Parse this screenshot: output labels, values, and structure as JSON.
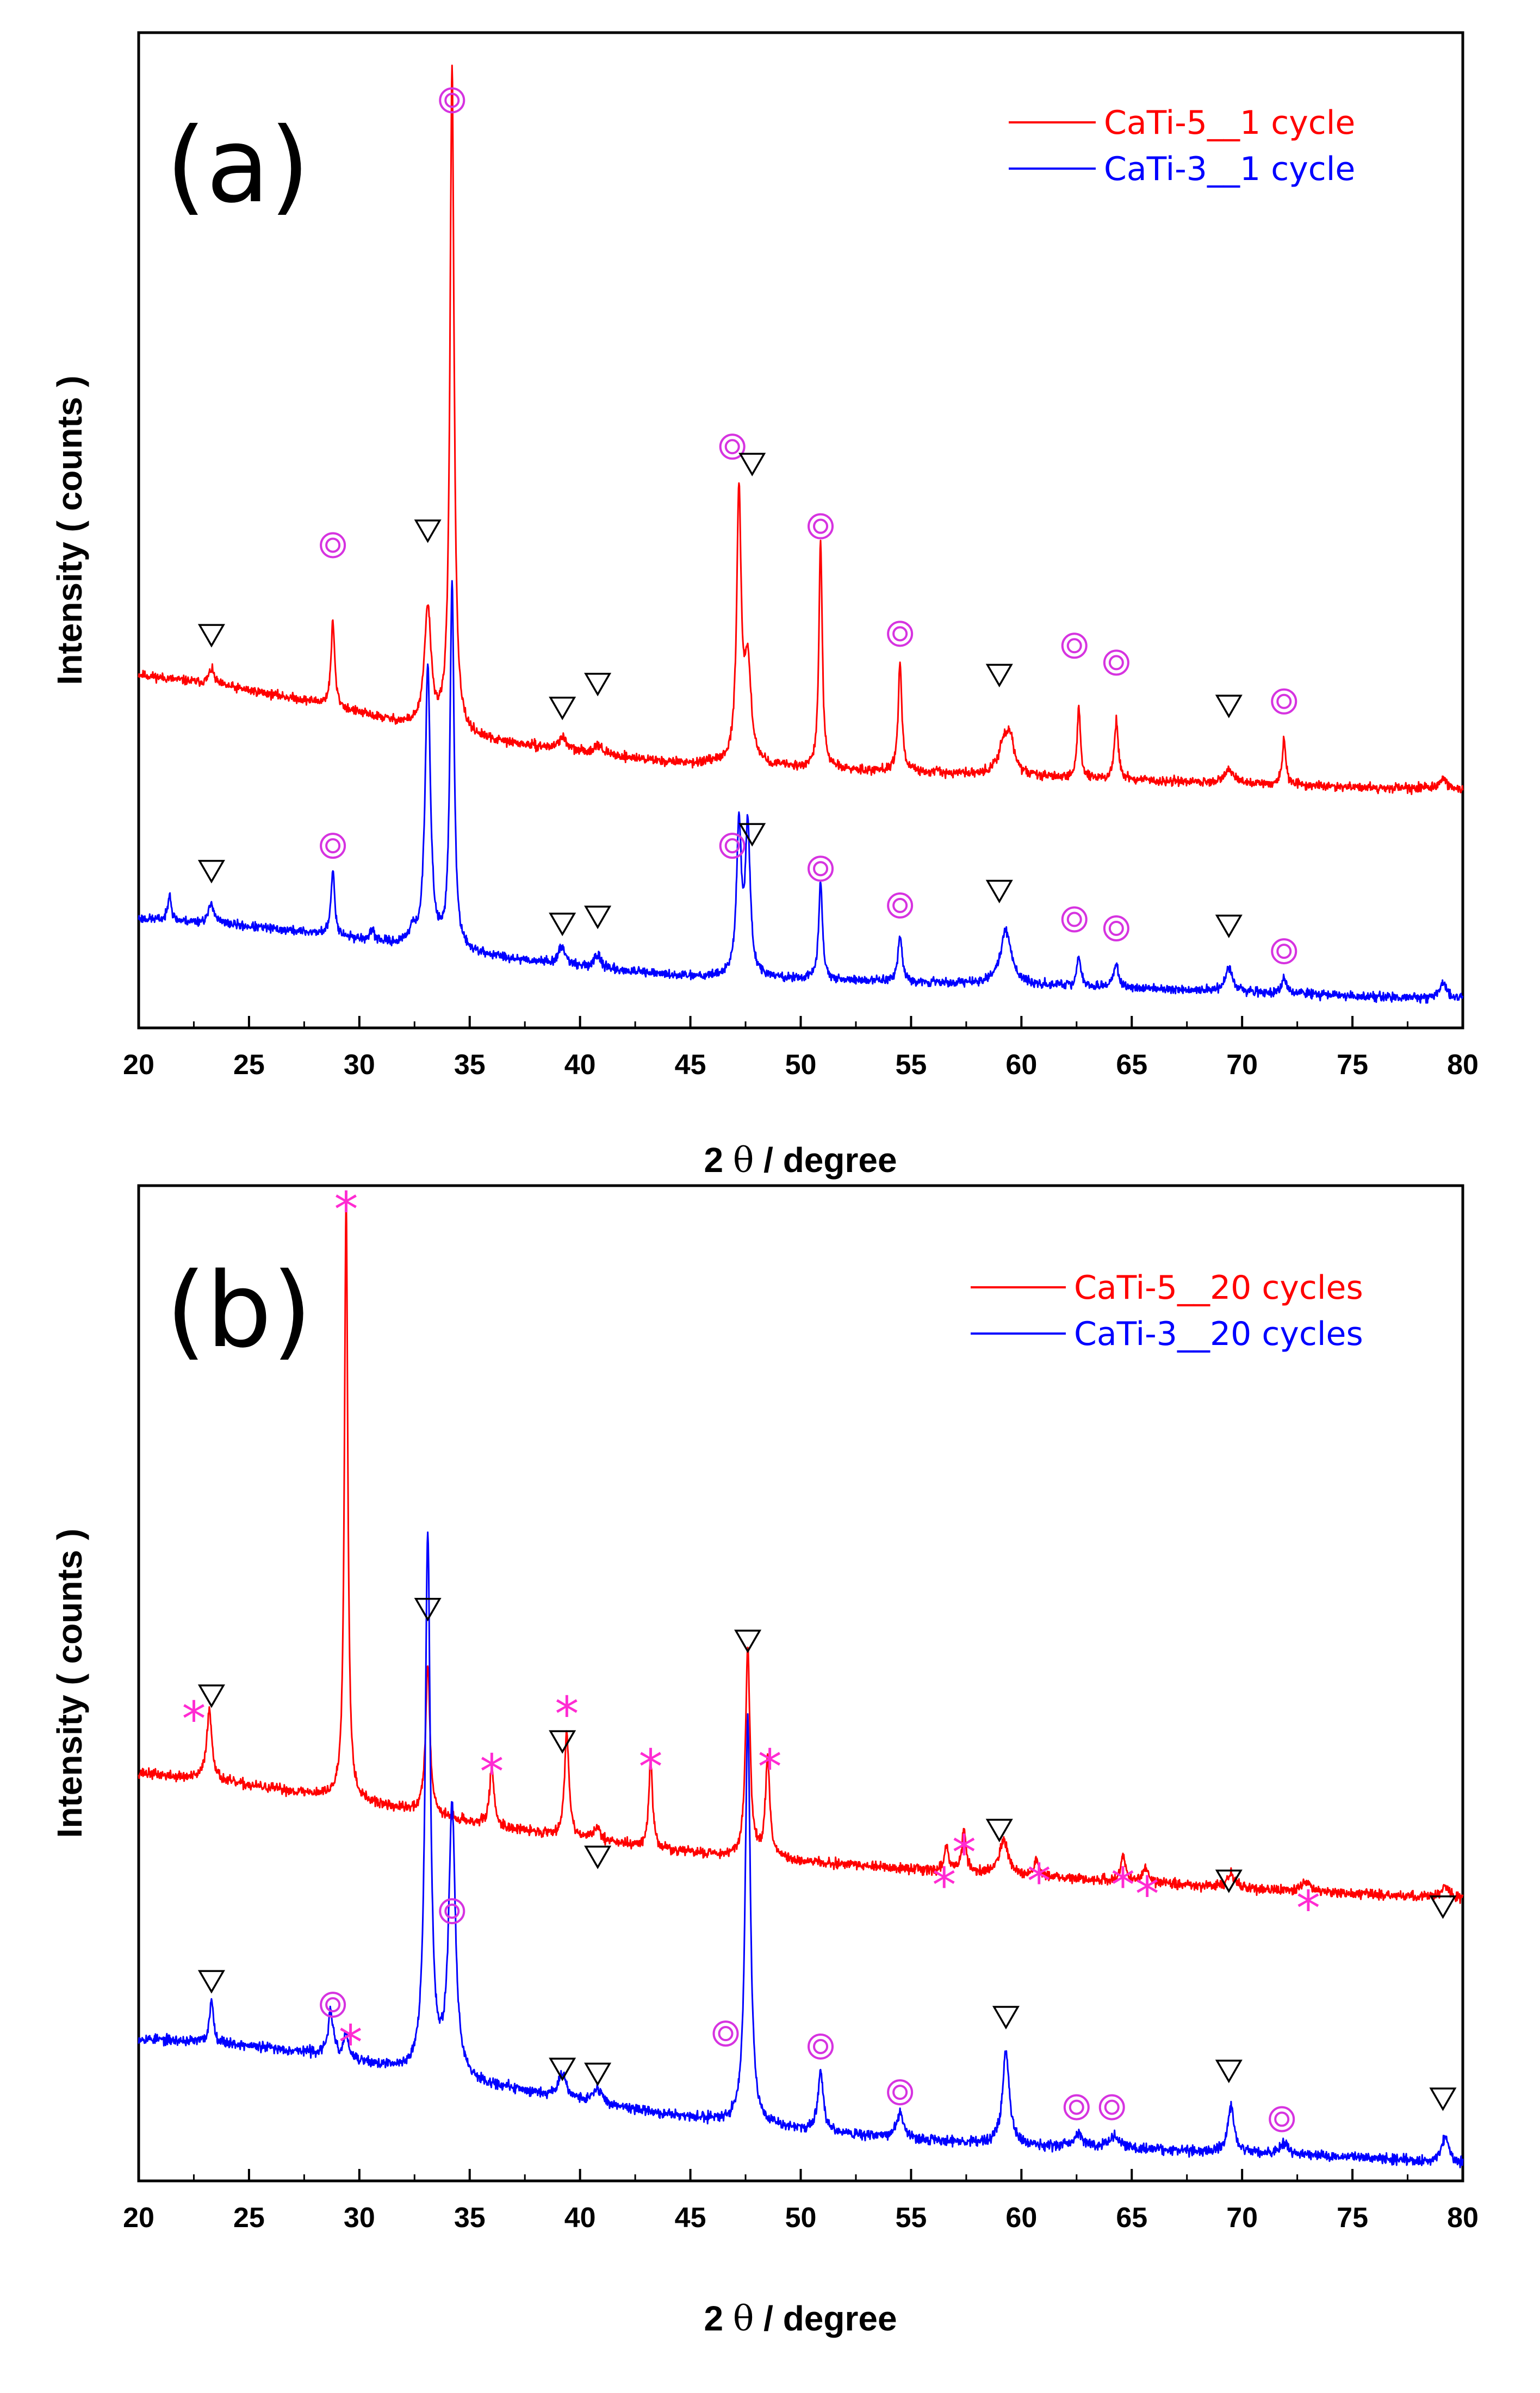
{
  "colors": {
    "red": "#ff0000",
    "blue": "#0000ff",
    "magenta": "#d633e0",
    "star": "#ff2bd2",
    "black": "#000000"
  },
  "icons": {
    "ring": "double-circle-icon",
    "triangle": "down-triangle-icon",
    "star": "asterisk-icon"
  },
  "chart_data": [
    {
      "type": "line",
      "panel_label": "(a)",
      "xlabel_parts": [
        "2",
        "θ",
        "/ degree"
      ],
      "ylabel": "Intensity ( counts )",
      "xlim": [
        20,
        80
      ],
      "ylim": [
        0,
        100
      ],
      "xticks": [
        20,
        25,
        30,
        35,
        40,
        45,
        50,
        55,
        60,
        65,
        70,
        75,
        80
      ],
      "xtick_labels": [
        "20",
        "25",
        "30",
        "35",
        "40",
        "45",
        "50",
        "55",
        "60",
        "65",
        "70",
        "75",
        "80"
      ],
      "legend": [
        "CaTi-5__1 cycle",
        "CaTi-3__1 cycle"
      ],
      "series": [
        {
          "name": "CaTi-5__1 cycle",
          "color": "#ff0000",
          "seed": 11,
          "noise": 0.45,
          "baseline": [
            [
              20,
              35.5
            ],
            [
              24,
              34.3
            ],
            [
              28,
              32.7
            ],
            [
              32,
              30.5
            ],
            [
              36,
              28.8
            ],
            [
              40,
              27.7
            ],
            [
              44,
              26.7
            ],
            [
              48,
              26.3
            ],
            [
              55,
              25.7
            ],
            [
              60,
              25.3
            ],
            [
              65,
              24.9
            ],
            [
              70,
              24.5
            ],
            [
              75,
              24.2
            ],
            [
              80,
              24.0
            ]
          ],
          "peaks": [
            [
              23.3,
              1.5,
              0.15
            ],
            [
              28.8,
              8.5,
              0.1
            ],
            [
              33.1,
              12.0,
              0.18
            ],
            [
              34.2,
              67.0,
              0.11
            ],
            [
              39.2,
              1.3,
              0.2
            ],
            [
              40.8,
              1.0,
              0.2
            ],
            [
              47.2,
              27.0,
              0.12
            ],
            [
              47.6,
              10.0,
              0.18
            ],
            [
              50.9,
              23.0,
              0.09
            ],
            [
              54.5,
              11.0,
              0.1
            ],
            [
              59.2,
              3.0,
              0.3
            ],
            [
              59.5,
              3.0,
              0.2
            ],
            [
              62.6,
              7.0,
              0.09
            ],
            [
              64.3,
              6.0,
              0.1
            ],
            [
              69.4,
              1.5,
              0.25
            ],
            [
              71.9,
              4.5,
              0.1
            ],
            [
              79.1,
              1.0,
              0.2
            ]
          ]
        },
        {
          "name": "CaTi-3__1 cycle",
          "color": "#0000ff",
          "seed": 23,
          "noise": 0.45,
          "baseline": [
            [
              20,
              11.0
            ],
            [
              24,
              10.4
            ],
            [
              28,
              9.5
            ],
            [
              32,
              8.3
            ],
            [
              36,
              7.2
            ],
            [
              40,
              6.1
            ],
            [
              44,
              5.3
            ],
            [
              48,
              5.0
            ],
            [
              55,
              4.6
            ],
            [
              60,
              4.3
            ],
            [
              65,
              4.0
            ],
            [
              70,
              3.6
            ],
            [
              75,
              3.2
            ],
            [
              80,
              2.9
            ]
          ],
          "peaks": [
            [
              21.4,
              3.0,
              0.08
            ],
            [
              23.3,
              2.0,
              0.15
            ],
            [
              28.8,
              6.5,
              0.1
            ],
            [
              30.6,
              1.0,
              0.1
            ],
            [
              32.4,
              1.5,
              0.15
            ],
            [
              33.1,
              28.0,
              0.14
            ],
            [
              34.2,
              37.0,
              0.11
            ],
            [
              39.2,
              1.8,
              0.2
            ],
            [
              40.8,
              1.3,
              0.2
            ],
            [
              47.2,
              15.0,
              0.13
            ],
            [
              47.6,
              15.0,
              0.13
            ],
            [
              50.9,
              10.0,
              0.1
            ],
            [
              54.5,
              4.5,
              0.12
            ],
            [
              59.3,
              5.5,
              0.3
            ],
            [
              62.6,
              3.0,
              0.1
            ],
            [
              64.3,
              2.5,
              0.12
            ],
            [
              69.4,
              2.5,
              0.2
            ],
            [
              71.9,
              1.8,
              0.12
            ],
            [
              79.1,
              1.5,
              0.2
            ]
          ]
        }
      ],
      "markers": [
        {
          "s": "tri",
          "x": 23.3,
          "y": 39.5
        },
        {
          "s": "ring",
          "x": 28.8,
          "y": 48.5
        },
        {
          "s": "tri",
          "x": 33.1,
          "y": 50.0
        },
        {
          "s": "ring",
          "x": 34.2,
          "y": 93.2
        },
        {
          "s": "tri",
          "x": 39.2,
          "y": 32.2
        },
        {
          "s": "tri",
          "x": 40.8,
          "y": 34.6
        },
        {
          "s": "ring",
          "x": 46.9,
          "y": 58.4
        },
        {
          "s": "tri",
          "x": 47.8,
          "y": 56.7
        },
        {
          "s": "ring",
          "x": 50.9,
          "y": 50.4
        },
        {
          "s": "ring",
          "x": 54.5,
          "y": 39.6
        },
        {
          "s": "tri",
          "x": 59.0,
          "y": 35.5
        },
        {
          "s": "ring",
          "x": 62.4,
          "y": 38.4
        },
        {
          "s": "ring",
          "x": 64.3,
          "y": 36.7
        },
        {
          "s": "tri",
          "x": 69.4,
          "y": 32.4
        },
        {
          "s": "ring",
          "x": 71.9,
          "y": 32.8
        },
        {
          "s": "tri",
          "x": 23.3,
          "y": 15.8
        },
        {
          "s": "ring",
          "x": 28.8,
          "y": 18.3
        },
        {
          "s": "tri",
          "x": 39.2,
          "y": 10.5
        },
        {
          "s": "tri",
          "x": 40.8,
          "y": 11.2
        },
        {
          "s": "ring",
          "x": 46.9,
          "y": 18.3
        },
        {
          "s": "tri",
          "x": 47.8,
          "y": 19.5
        },
        {
          "s": "ring",
          "x": 50.9,
          "y": 16.0
        },
        {
          "s": "ring",
          "x": 54.5,
          "y": 12.3
        },
        {
          "s": "tri",
          "x": 59.0,
          "y": 13.8
        },
        {
          "s": "ring",
          "x": 62.4,
          "y": 10.9
        },
        {
          "s": "ring",
          "x": 64.3,
          "y": 10.0
        },
        {
          "s": "tri",
          "x": 69.4,
          "y": 10.3
        },
        {
          "s": "ring",
          "x": 71.9,
          "y": 7.7
        }
      ]
    },
    {
      "type": "line",
      "panel_label": "(b)",
      "xlabel_parts": [
        "2",
        "θ",
        "/ degree"
      ],
      "ylabel": "Intensity ( counts )",
      "xlim": [
        20,
        80
      ],
      "ylim": [
        0,
        100
      ],
      "xticks": [
        20,
        25,
        30,
        35,
        40,
        45,
        50,
        55,
        60,
        65,
        70,
        75,
        80
      ],
      "xtick_labels": [
        "20",
        "25",
        "30",
        "35",
        "40",
        "45",
        "50",
        "55",
        "60",
        "65",
        "70",
        "75",
        "80"
      ],
      "legend": [
        "CaTi-5__20 cycles",
        "CaTi-3__20 cycles"
      ],
      "series": [
        {
          "name": "CaTi-5__20 cycles",
          "color": "#ff0000",
          "seed": 37,
          "noise": 0.5,
          "baseline": [
            [
              20,
              41.0
            ],
            [
              24,
              40.0
            ],
            [
              28,
              38.8
            ],
            [
              32,
              37.3
            ],
            [
              36,
              35.6
            ],
            [
              40,
              34.4
            ],
            [
              44,
              33.2
            ],
            [
              48,
              32.4
            ],
            [
              55,
              31.3
            ],
            [
              60,
              30.6
            ],
            [
              65,
              30.1
            ],
            [
              70,
              29.4
            ],
            [
              75,
              28.9
            ],
            [
              80,
              28.4
            ]
          ],
          "peaks": [
            [
              23.2,
              7.0,
              0.15
            ],
            [
              29.4,
              61.0,
              0.09
            ],
            [
              33.1,
              15.0,
              0.12
            ],
            [
              36.0,
              6.0,
              0.12
            ],
            [
              39.4,
              10.5,
              0.12
            ],
            [
              40.8,
              1.2,
              0.2
            ],
            [
              43.2,
              9.0,
              0.1
            ],
            [
              47.6,
              21.0,
              0.12
            ],
            [
              48.5,
              10.0,
              0.12
            ],
            [
              56.6,
              2.5,
              0.12
            ],
            [
              57.4,
              4.0,
              0.12
            ],
            [
              59.2,
              3.5,
              0.25
            ],
            [
              60.7,
              1.8,
              0.12
            ],
            [
              64.6,
              2.5,
              0.12
            ],
            [
              65.6,
              1.5,
              0.12
            ],
            [
              69.5,
              1.3,
              0.2
            ],
            [
              72.9,
              1.0,
              0.2
            ],
            [
              79.2,
              1.0,
              0.2
            ]
          ]
        },
        {
          "name": "CaTi-3__20 cycles",
          "color": "#0000ff",
          "seed": 53,
          "noise": 0.5,
          "baseline": [
            [
              20,
              14.3
            ],
            [
              24,
              13.8
            ],
            [
              28,
              12.8
            ],
            [
              32,
              11.0
            ],
            [
              36,
              9.5
            ],
            [
              40,
              8.1
            ],
            [
              44,
              6.6
            ],
            [
              48,
              5.6
            ],
            [
              55,
              4.1
            ],
            [
              60,
              3.6
            ],
            [
              65,
              3.2
            ],
            [
              70,
              2.8
            ],
            [
              75,
              2.4
            ],
            [
              80,
              1.7
            ]
          ],
          "peaks": [
            [
              23.3,
              4.5,
              0.1
            ],
            [
              28.7,
              4.5,
              0.14
            ],
            [
              29.4,
              2.5,
              0.12
            ],
            [
              33.1,
              54.0,
              0.14
            ],
            [
              34.2,
              27.0,
              0.18
            ],
            [
              39.2,
              2.5,
              0.2
            ],
            [
              40.8,
              1.5,
              0.2
            ],
            [
              47.6,
              41.0,
              0.14
            ],
            [
              50.9,
              6.0,
              0.14
            ],
            [
              54.5,
              2.5,
              0.2
            ],
            [
              59.3,
              9.5,
              0.18
            ],
            [
              62.6,
              1.2,
              0.25
            ],
            [
              64.2,
              1.2,
              0.3
            ],
            [
              69.5,
              4.5,
              0.18
            ],
            [
              71.9,
              1.2,
              0.2
            ],
            [
              79.2,
              2.5,
              0.2
            ]
          ]
        }
      ],
      "markers": [
        {
          "s": "star",
          "x": 22.5,
          "y": 46.8
        },
        {
          "s": "tri",
          "x": 23.3,
          "y": 48.8
        },
        {
          "s": "star",
          "x": 29.4,
          "y": 98.0
        },
        {
          "s": "tri",
          "x": 33.1,
          "y": 57.5
        },
        {
          "s": "star",
          "x": 36.0,
          "y": 41.5
        },
        {
          "s": "star",
          "x": 39.4,
          "y": 47.3
        },
        {
          "s": "tri",
          "x": 39.2,
          "y": 44.2
        },
        {
          "s": "tri",
          "x": 40.8,
          "y": 32.6
        },
        {
          "s": "star",
          "x": 43.2,
          "y": 42.0
        },
        {
          "s": "tri",
          "x": 47.6,
          "y": 54.3
        },
        {
          "s": "star",
          "x": 48.6,
          "y": 42.0
        },
        {
          "s": "star",
          "x": 56.5,
          "y": 30.1
        },
        {
          "s": "star",
          "x": 57.4,
          "y": 33.4
        },
        {
          "s": "tri",
          "x": 59.0,
          "y": 35.3
        },
        {
          "s": "star",
          "x": 60.8,
          "y": 30.5
        },
        {
          "s": "star",
          "x": 64.6,
          "y": 30.1
        },
        {
          "s": "star",
          "x": 65.7,
          "y": 29.2
        },
        {
          "s": "tri",
          "x": 69.4,
          "y": 30.2
        },
        {
          "s": "star",
          "x": 73.0,
          "y": 27.8
        },
        {
          "s": "tri",
          "x": 79.1,
          "y": 27.6
        },
        {
          "s": "tri",
          "x": 23.3,
          "y": 20.1
        },
        {
          "s": "ring",
          "x": 28.8,
          "y": 17.7
        },
        {
          "s": "star",
          "x": 29.6,
          "y": 14.3
        },
        {
          "s": "ring",
          "x": 34.2,
          "y": 27.1
        },
        {
          "s": "tri",
          "x": 39.2,
          "y": 11.3
        },
        {
          "s": "tri",
          "x": 40.8,
          "y": 10.8
        },
        {
          "s": "ring",
          "x": 46.6,
          "y": 14.8
        },
        {
          "s": "ring",
          "x": 50.9,
          "y": 13.5
        },
        {
          "s": "ring",
          "x": 54.5,
          "y": 8.9
        },
        {
          "s": "tri",
          "x": 59.3,
          "y": 16.5
        },
        {
          "s": "ring",
          "x": 62.5,
          "y": 7.4
        },
        {
          "s": "ring",
          "x": 64.1,
          "y": 7.4
        },
        {
          "s": "tri",
          "x": 69.4,
          "y": 11.1
        },
        {
          "s": "ring",
          "x": 71.8,
          "y": 6.2
        },
        {
          "s": "tri",
          "x": 79.1,
          "y": 8.3
        }
      ]
    }
  ]
}
